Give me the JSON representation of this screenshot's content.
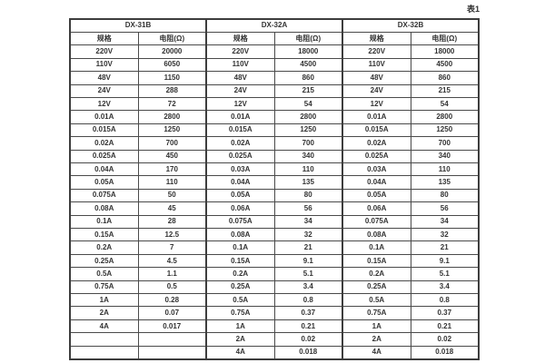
{
  "caption": "表1",
  "theme": {
    "background": "#ffffff",
    "border_color": "#3d3d3d",
    "text_color": "#333333"
  },
  "table": {
    "sections": [
      {
        "name": "DX-31B",
        "col_headers": [
          "规格",
          "电阻(Ω)"
        ],
        "rows": [
          [
            "220V",
            "20000"
          ],
          [
            "110V",
            "6050"
          ],
          [
            "48V",
            "1150"
          ],
          [
            "24V",
            "288"
          ],
          [
            "12V",
            "72"
          ],
          [
            "0.01A",
            "2800"
          ],
          [
            "0.015A",
            "1250"
          ],
          [
            "0.02A",
            "700"
          ],
          [
            "0.025A",
            "450"
          ],
          [
            "0.04A",
            "170"
          ],
          [
            "0.05A",
            "110"
          ],
          [
            "0.075A",
            "50"
          ],
          [
            "0.08A",
            "45"
          ],
          [
            "0.1A",
            "28"
          ],
          [
            "0.15A",
            "12.5"
          ],
          [
            "0.2A",
            "7"
          ],
          [
            "0.25A",
            "4.5"
          ],
          [
            "0.5A",
            "1.1"
          ],
          [
            "0.75A",
            "0.5"
          ],
          [
            "1A",
            "0.28"
          ],
          [
            "2A",
            "0.07"
          ],
          [
            "4A",
            "0.017"
          ],
          [
            "",
            ""
          ],
          [
            "",
            ""
          ]
        ]
      },
      {
        "name": "DX-32A",
        "col_headers": [
          "规格",
          "电阻(Ω)"
        ],
        "rows": [
          [
            "220V",
            "18000"
          ],
          [
            "110V",
            "4500"
          ],
          [
            "48V",
            "860"
          ],
          [
            "24V",
            "215"
          ],
          [
            "12V",
            "54"
          ],
          [
            "0.01A",
            "2800"
          ],
          [
            "0.015A",
            "1250"
          ],
          [
            "0.02A",
            "700"
          ],
          [
            "0.025A",
            "340"
          ],
          [
            "0.03A",
            "110"
          ],
          [
            "0.04A",
            "135"
          ],
          [
            "0.05A",
            "80"
          ],
          [
            "0.06A",
            "56"
          ],
          [
            "0.075A",
            "34"
          ],
          [
            "0.08A",
            "32"
          ],
          [
            "0.1A",
            "21"
          ],
          [
            "0.15A",
            "9.1"
          ],
          [
            "0.2A",
            "5.1"
          ],
          [
            "0.25A",
            "3.4"
          ],
          [
            "0.5A",
            "0.8"
          ],
          [
            "0.75A",
            "0.37"
          ],
          [
            "1A",
            "0.21"
          ],
          [
            "2A",
            "0.02"
          ],
          [
            "4A",
            "0.018"
          ]
        ]
      },
      {
        "name": "DX-32B",
        "col_headers": [
          "规格",
          "电阻(Ω)"
        ],
        "rows": [
          [
            "220V",
            "18000"
          ],
          [
            "110V",
            "4500"
          ],
          [
            "48V",
            "860"
          ],
          [
            "24V",
            "215"
          ],
          [
            "12V",
            "54"
          ],
          [
            "0.01A",
            "2800"
          ],
          [
            "0.015A",
            "1250"
          ],
          [
            "0.02A",
            "700"
          ],
          [
            "0.025A",
            "340"
          ],
          [
            "0.03A",
            "110"
          ],
          [
            "0.04A",
            "135"
          ],
          [
            "0.05A",
            "80"
          ],
          [
            "0.06A",
            "56"
          ],
          [
            "0.075A",
            "34"
          ],
          [
            "0.08A",
            "32"
          ],
          [
            "0.1A",
            "21"
          ],
          [
            "0.15A",
            "9.1"
          ],
          [
            "0.2A",
            "5.1"
          ],
          [
            "0.25A",
            "3.4"
          ],
          [
            "0.5A",
            "0.8"
          ],
          [
            "0.75A",
            "0.37"
          ],
          [
            "1A",
            "0.21"
          ],
          [
            "2A",
            "0.02"
          ],
          [
            "4A",
            "0.018"
          ]
        ]
      }
    ]
  }
}
